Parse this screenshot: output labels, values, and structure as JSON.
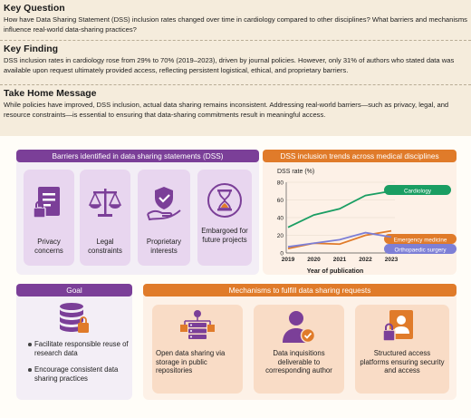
{
  "key_question": {
    "title": "Key Question",
    "text": "How have Data Sharing Statement (DSS) inclusion rates changed over time in cardiology compared to other disciplines? What barriers and mechanisms influence real-world data-sharing practices?"
  },
  "key_finding": {
    "title": "Key Finding",
    "text": "DSS inclusion rates in cardiology rose from 29% to 70% (2019–2023), driven by journal policies. However, only 31% of authors who stated data was available upon request ultimately provided access, reflecting persistent logistical, ethical, and proprietary barriers."
  },
  "take_home": {
    "title": "Take Home Message",
    "text": "While policies have improved, DSS inclusion, actual data sharing remains inconsistent. Addressing real-world barriers—such as privacy, legal, and resource constraints—is essential to ensuring that data-sharing commitments result in meaningful access."
  },
  "barriers": {
    "title": "Barriers identified in data sharing statements (DSS)",
    "items": [
      {
        "label": "Privacy concerns",
        "icon": "document-lock-icon"
      },
      {
        "label": "Legal constraints",
        "icon": "scales-icon"
      },
      {
        "label": "Proprietary interests",
        "icon": "hand-shield-icon"
      },
      {
        "label": "Embargoed for future projects",
        "icon": "hourglass-icon"
      }
    ]
  },
  "goal": {
    "title": "Goal",
    "icon": "database-lock-icon",
    "bullets": [
      "Facilitate responsible reuse of research data",
      "Encourage consistent data sharing practices"
    ]
  },
  "mechanisms": {
    "title": "Mechanisms to fulfill data sharing requests",
    "items": [
      {
        "label": "Open data sharing via storage in public repositories",
        "icon": "server-network-icon"
      },
      {
        "label": "Data inquisitions deliverable to corresponding author",
        "icon": "author-check-icon"
      },
      {
        "label": "Structured access platforms ensuring security and access",
        "icon": "profile-lock-icon"
      }
    ]
  },
  "colors": {
    "purple": "#7b3f98",
    "orange": "#e07b2a",
    "cardiology": "#1a9e63",
    "emergency": "#e07b2a",
    "orthopaedic": "#7d7fd6"
  },
  "trends": {
    "title": "DSS inclusion trends across medical disciplines"
  },
  "chart_data": {
    "type": "line",
    "ylabel": "DSS rate (%)",
    "xlabel": "Year of publication",
    "x": [
      2019,
      2020,
      2021,
      2022,
      2023
    ],
    "ylim": [
      0,
      80
    ],
    "yticks": [
      0,
      20,
      40,
      60,
      80
    ],
    "series": [
      {
        "name": "Cardiology",
        "values": [
          29,
          43,
          50,
          65,
          70
        ]
      },
      {
        "name": "Emergency medicine",
        "values": [
          5,
          11,
          10,
          20,
          25
        ]
      },
      {
        "name": "Orthopaedic surgery",
        "values": [
          7,
          11,
          15,
          23,
          18
        ]
      }
    ]
  }
}
